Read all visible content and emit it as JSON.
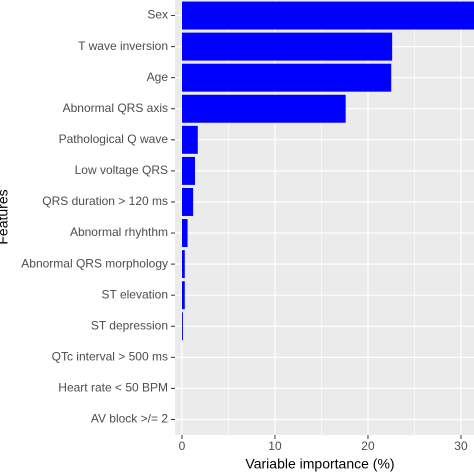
{
  "chart_data": {
    "type": "barh",
    "x_label": "Variable importance (%)",
    "y_label": "Features",
    "categories": [
      "Sex",
      "T wave inversion",
      "Age",
      "Abnormal QRS axis",
      "Pathological Q wave",
      "Low voltage QRS",
      "QRS duration > 120 ms",
      "Abnormal rhyhthm",
      "Abnormal QRS morphology",
      "ST elevation",
      "ST depression",
      "QTc interval > 500 ms",
      "Heart rate < 50 BPM",
      "AV block >/= 2"
    ],
    "values": [
      31.4,
      22.6,
      22.5,
      17.6,
      1.7,
      1.4,
      1.2,
      0.6,
      0.3,
      0.3,
      0.1,
      0,
      0,
      0
    ],
    "color": "#0000ff",
    "xlim": [
      -0.75,
      31.4
    ],
    "xticks": [
      0,
      10,
      20,
      30
    ],
    "grid": true
  }
}
